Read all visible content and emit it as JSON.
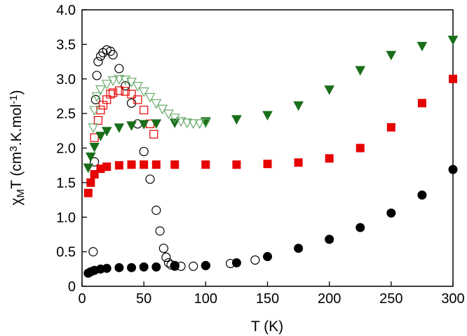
{
  "chart_data": {
    "type": "scatter",
    "xlabel": "T (K)",
    "ylabel": {
      "parts": [
        {
          "text": "χ",
          "style": "normal"
        },
        {
          "text": "M",
          "style": "sub"
        },
        {
          "text": "T (cm",
          "style": "normal"
        },
        {
          "text": "3",
          "style": "sup"
        },
        {
          "text": ".K.mol",
          "style": "normal"
        },
        {
          "text": "-1",
          "style": "sup"
        },
        {
          "text": ")",
          "style": "normal"
        }
      ]
    },
    "xlim": [
      0,
      300
    ],
    "ylim": [
      0,
      4.0
    ],
    "xticks": [
      0,
      50,
      100,
      150,
      200,
      250,
      300
    ],
    "yticks": [
      0,
      0.5,
      1.0,
      1.5,
      2.0,
      2.5,
      3.0,
      3.5,
      4.0
    ],
    "xtick_labels": [
      "0",
      "50",
      "100",
      "150",
      "200",
      "250",
      "300"
    ],
    "ytick_labels": [
      "0",
      "0.5",
      "1.0",
      "1.5",
      "2.0",
      "2.5",
      "3.0",
      "3.5",
      "4.0"
    ],
    "grid": false,
    "series": [
      {
        "marker": "circle",
        "filled": true,
        "color": "#000000",
        "x": [
          5,
          7,
          10,
          15,
          20,
          30,
          40,
          50,
          60,
          75,
          100,
          125,
          150,
          175,
          200,
          225,
          250,
          275,
          300
        ],
        "y": [
          0.19,
          0.21,
          0.23,
          0.25,
          0.26,
          0.27,
          0.27,
          0.28,
          0.28,
          0.29,
          0.3,
          0.34,
          0.43,
          0.55,
          0.68,
          0.85,
          1.06,
          1.32,
          1.69
        ]
      },
      {
        "marker": "circle",
        "filled": false,
        "color": "#000000",
        "x": [
          9,
          10,
          11,
          12,
          13,
          15,
          17,
          20,
          23,
          25,
          30,
          35,
          40,
          45,
          50,
          55,
          60,
          63,
          66,
          68,
          70,
          72,
          75,
          80,
          90,
          100,
          120,
          140
        ],
        "y": [
          0.5,
          1.8,
          2.7,
          3.05,
          3.25,
          3.33,
          3.38,
          3.42,
          3.4,
          3.35,
          3.15,
          2.9,
          2.65,
          2.35,
          1.95,
          1.55,
          1.1,
          0.8,
          0.55,
          0.42,
          0.34,
          0.31,
          0.3,
          0.29,
          0.29,
          0.3,
          0.33,
          0.38
        ]
      },
      {
        "marker": "square",
        "filled": true,
        "color": "#e60000",
        "x": [
          5,
          7,
          10,
          15,
          20,
          30,
          40,
          50,
          60,
          75,
          100,
          125,
          150,
          175,
          200,
          225,
          250,
          275,
          300
        ],
        "y": [
          1.35,
          1.5,
          1.62,
          1.7,
          1.73,
          1.75,
          1.76,
          1.76,
          1.76,
          1.76,
          1.76,
          1.76,
          1.77,
          1.79,
          1.85,
          2.0,
          2.3,
          2.65,
          3.0
        ]
      },
      {
        "marker": "square",
        "filled": false,
        "color": "#e60000",
        "x": [
          10,
          13,
          15,
          17,
          20,
          23,
          25,
          30,
          35,
          40,
          45,
          50,
          55,
          58
        ],
        "y": [
          2.15,
          2.4,
          2.55,
          2.62,
          2.7,
          2.78,
          2.8,
          2.83,
          2.82,
          2.78,
          2.7,
          2.55,
          2.35,
          2.2
        ]
      },
      {
        "marker": "triangle-down",
        "filled": true,
        "color": "#1a6e1a",
        "x": [
          5,
          7,
          10,
          15,
          20,
          30,
          40,
          50,
          60,
          75,
          100,
          125,
          150,
          175,
          200,
          225,
          250,
          275,
          300
        ],
        "y": [
          1.72,
          1.88,
          2.02,
          2.18,
          2.25,
          2.3,
          2.33,
          2.35,
          2.36,
          2.37,
          2.39,
          2.42,
          2.48,
          2.62,
          2.85,
          3.13,
          3.35,
          3.48,
          3.57
        ]
      },
      {
        "marker": "triangle-down",
        "filled": false,
        "color": "#6aaa6a",
        "x": [
          9,
          10,
          12,
          15,
          20,
          25,
          30,
          35,
          40,
          45,
          50,
          55,
          60,
          65,
          70,
          75,
          80,
          85,
          90,
          95,
          100
        ],
        "y": [
          2.3,
          2.55,
          2.75,
          2.85,
          2.93,
          2.98,
          3.0,
          2.99,
          2.96,
          2.9,
          2.82,
          2.74,
          2.65,
          2.57,
          2.5,
          2.44,
          2.39,
          2.37,
          2.36,
          2.36,
          2.37
        ]
      }
    ]
  }
}
